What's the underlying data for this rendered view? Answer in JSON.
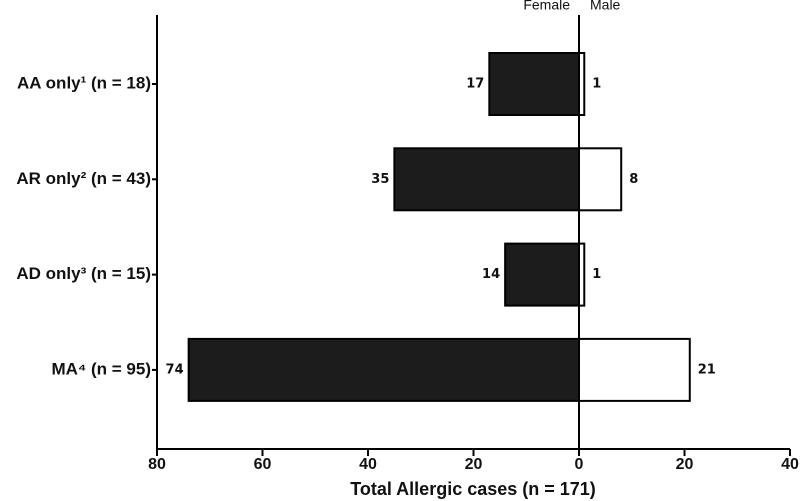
{
  "chart_data": {
    "type": "pyramid",
    "xlabel": "Total Allergic cases (n = 171)",
    "categories": [
      "AA only¹ (n = 18)",
      "AR only² (n = 43)",
      "AD only³ (n = 15)",
      "MA⁴ (n = 95)"
    ],
    "series": [
      {
        "name": "Female",
        "color": "#1c1c1c",
        "side": "left",
        "values": [
          17,
          35,
          14,
          74
        ]
      },
      {
        "name": "Male",
        "color": "#ffffff",
        "side": "right",
        "values": [
          1,
          8,
          1,
          21
        ]
      }
    ],
    "xlim": [
      -80,
      40
    ],
    "xticks": [
      {
        "value": -80,
        "label": "80"
      },
      {
        "value": -60,
        "label": "60"
      },
      {
        "value": -40,
        "label": "40"
      },
      {
        "value": -20,
        "label": "20"
      },
      0,
      20,
      40
    ]
  }
}
